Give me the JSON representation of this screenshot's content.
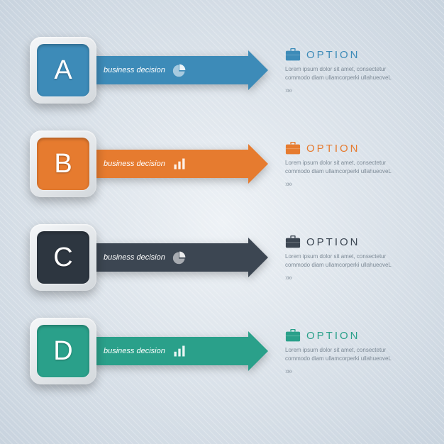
{
  "background": {
    "gradient_center": "#eef2f6",
    "gradient_edge": "#c8d3de",
    "stripe_color": "rgba(255,255,255,0.25)"
  },
  "icons": {
    "pie": "pie-chart-icon",
    "bars": "bar-chart-icon",
    "briefcase": "briefcase-icon"
  },
  "rows": [
    {
      "letter": "A",
      "badge_color": "#3d8bb8",
      "arrow_color": "#3d8bb8",
      "arrow_label": "business decision",
      "arrow_icon": "pie",
      "option_title": "OPTION",
      "option_title_color": "#3d8bb8",
      "briefcase_color": "#3d8bb8",
      "option_desc": "Lorem ipsum dolor sit amet, consectetur commodo diam ullamcorperki ullahueoveL",
      "chevron": "»»"
    },
    {
      "letter": "B",
      "badge_color": "#e67b2f",
      "arrow_color": "#e67b2f",
      "arrow_label": "business decision",
      "arrow_icon": "bars",
      "option_title": "OPTION",
      "option_title_color": "#e67b2f",
      "briefcase_color": "#e67b2f",
      "option_desc": "Lorem ipsum dolor sit amet, consectetur commodo diam ullamcorperki ullahueoveL",
      "chevron": "»»"
    },
    {
      "letter": "C",
      "badge_color": "#2d3640",
      "arrow_color": "#3c4652",
      "arrow_label": "business decision",
      "arrow_icon": "pie",
      "option_title": "OPTION",
      "option_title_color": "#3c4652",
      "briefcase_color": "#3c4652",
      "option_desc": "Lorem ipsum dolor sit amet, consectetur commodo diam ullamcorperki ullahueoveL",
      "chevron": "»»"
    },
    {
      "letter": "D",
      "badge_color": "#2aa08a",
      "arrow_color": "#2aa08a",
      "arrow_label": "business decision",
      "arrow_icon": "bars",
      "option_title": "OPTION",
      "option_title_color": "#2aa08a",
      "briefcase_color": "#2aa08a",
      "option_desc": "Lorem ipsum dolor sit amet, consectetur commodo diam ullamcorperki ullahueoveL",
      "chevron": "»»"
    }
  ]
}
